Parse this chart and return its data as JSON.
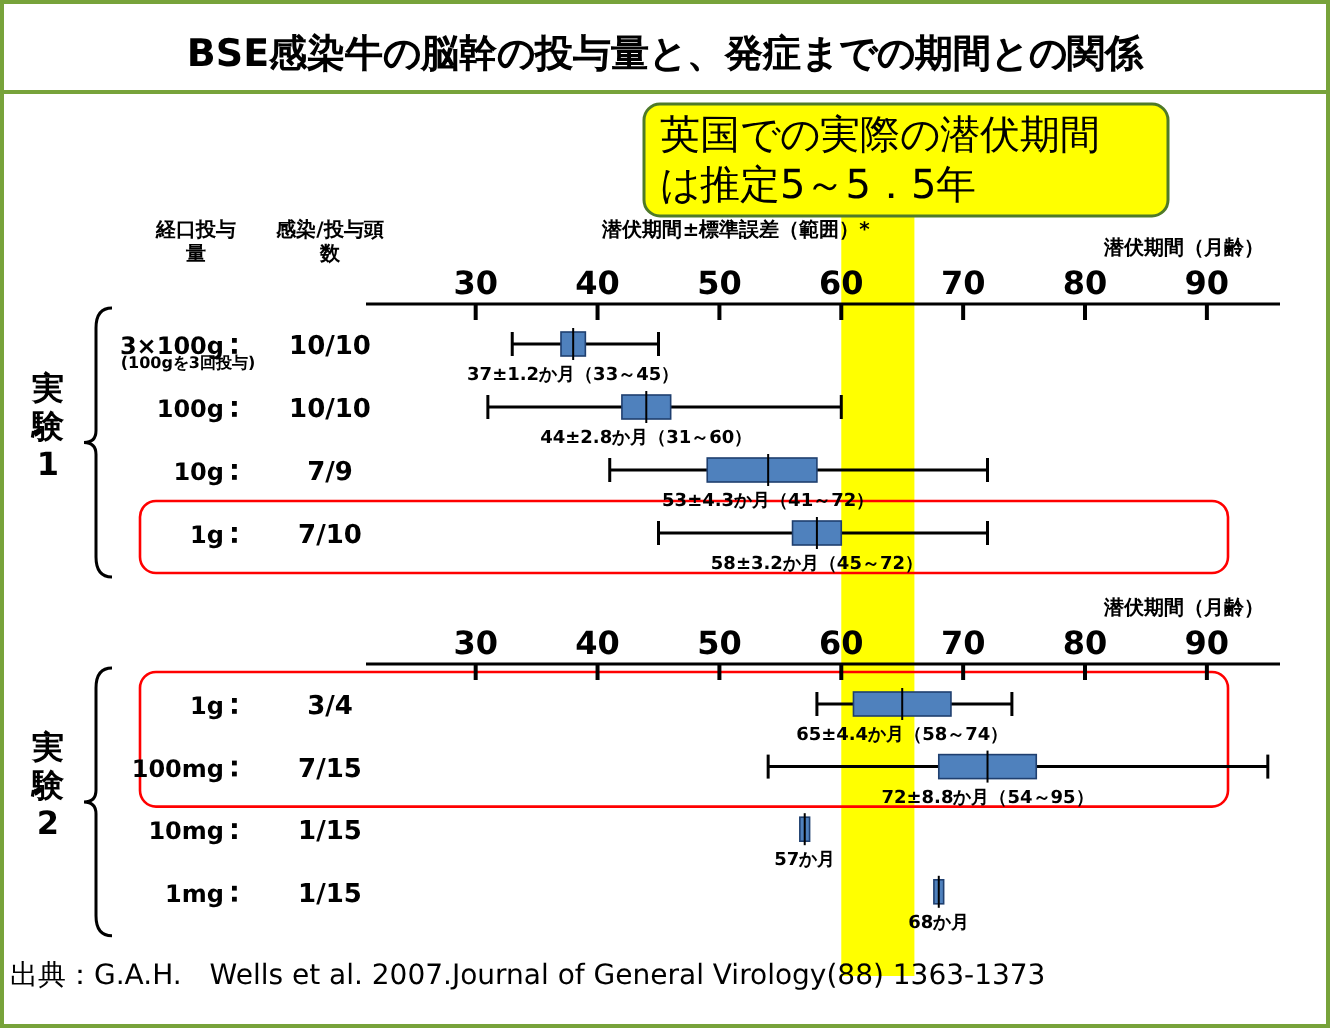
{
  "chart_data": [
    {
      "type": "box",
      "orientation": "horizontal",
      "title": "BSE感染牛の脳幹の投与量と、発症までの期間との関係",
      "xlabel": "潜伏期間（月齢）",
      "ylabel": "実験1",
      "color": "#4f81bd",
      "categories": [
        "3×100g",
        "100g",
        "10g",
        "1g"
      ],
      "boxes": [
        {
          "low": 33,
          "q1": 37,
          "median": 38,
          "q3": 39,
          "high": 45
        },
        {
          "low": 31,
          "q1": 42,
          "median": 44,
          "q3": 46,
          "high": 60
        },
        {
          "low": 41,
          "q1": 49,
          "median": 54,
          "q3": 58,
          "high": 72
        },
        {
          "low": 45,
          "q1": 56,
          "median": 58,
          "q3": 60,
          "high": 72
        }
      ],
      "value_labels": [
        "37±1.2か月（33～45）",
        "44±2.8か月（31～60）",
        "53±4.3か月（41～72）",
        "58±3.2か月（45～72）"
      ],
      "xlim": [
        21,
        96
      ],
      "xticks": [
        30,
        40,
        50,
        60,
        70,
        80,
        90
      ],
      "bands": [
        {
          "axis": "x",
          "from": 60,
          "to": 66,
          "color": "#ffff00",
          "label": "英国での実際の潜伏期間は推定5～5．5年"
        }
      ],
      "annotations": [
        "経口投与量",
        "感染/投与頭数",
        "潜伏期間±標準誤差（範囲）*",
        "(100gを3回投与)",
        "10/10",
        "10/10",
        "7/9",
        "7/10"
      ]
    },
    {
      "type": "box",
      "orientation": "horizontal",
      "xlabel": "潜伏期間（月齢）",
      "ylabel": "実験2",
      "color": "#4f81bd",
      "categories": [
        "1g",
        "100mg",
        "10mg",
        "1mg"
      ],
      "boxes": [
        {
          "low": 58,
          "q1": 61,
          "median": 65,
          "q3": 69,
          "high": 74
        },
        {
          "low": 54,
          "q1": 68,
          "median": 72,
          "q3": 76,
          "high": 95
        },
        {
          "low": 56.6,
          "q1": 56.6,
          "median": 57,
          "q3": 57.4,
          "high": 57.4
        },
        {
          "low": 67.6,
          "q1": 67.6,
          "median": 68,
          "q3": 68.4,
          "high": 68.4
        }
      ],
      "value_labels": [
        "65±4.4か月（58～74）",
        "72±8.8か月（54～95）",
        "57か月",
        "68か月"
      ],
      "xlim": [
        21,
        96
      ],
      "xticks": [
        30,
        40,
        50,
        60,
        70,
        80,
        90
      ],
      "bands": [
        {
          "axis": "x",
          "from": 60,
          "to": 66,
          "color": "#ffff00"
        }
      ],
      "annotations": [
        "出典：G.A.H.　Wells et al. 2007.Journal of General Virology(88) 1363-1373",
        "3/4",
        "7/15",
        "1/15",
        "1/15"
      ]
    }
  ]
}
